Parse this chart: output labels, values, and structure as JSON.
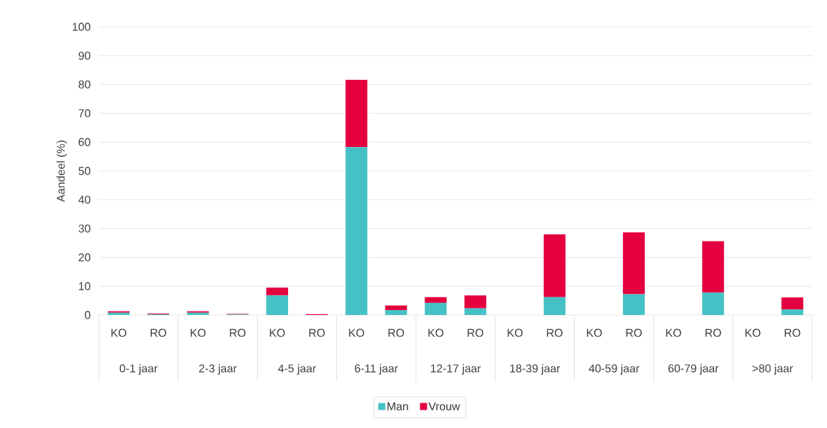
{
  "chart_data": {
    "type": "bar",
    "stacked": true,
    "ylabel": "Aandeel (%)",
    "categories": [
      "KO",
      "RO",
      "KO",
      "RO",
      "KO",
      "RO",
      "KO",
      "RO",
      "KO",
      "RO",
      "KO",
      "RO",
      "KO",
      "RO",
      "KO",
      "RO",
      "KO",
      "RO"
    ],
    "series": [
      {
        "name": "Man",
        "color": "#45c1c6",
        "values": [
          0.8,
          0.2,
          0.8,
          0.2,
          6.8,
          null,
          58.3,
          1.7,
          4.2,
          2.3,
          0,
          6.2,
          0,
          7.2,
          0,
          7.8,
          0,
          1.9
        ]
      },
      {
        "name": "Vrouw",
        "color": "#e4003f",
        "values": [
          0.5,
          0.3,
          0.5,
          0.2,
          2.7,
          0.3,
          23.3,
          1.6,
          2.0,
          4.5,
          0,
          21.8,
          0,
          21.5,
          0,
          17.8,
          0,
          4.2
        ]
      }
    ],
    "ylim": [
      0,
      100
    ],
    "yticks": [
      0,
      10,
      20,
      30,
      40,
      50,
      60,
      70,
      80,
      90,
      100
    ],
    "grid": "y",
    "legend": "bottom",
    "annotations": [
      "0-1 jaar",
      "2-3 jaar",
      "4-5 jaar",
      "6-11 jaar",
      "12-17 jaar",
      "18-39 jaar",
      "40-59 jaar",
      "60-79 jaar",
      ">80 jaar"
    ]
  }
}
